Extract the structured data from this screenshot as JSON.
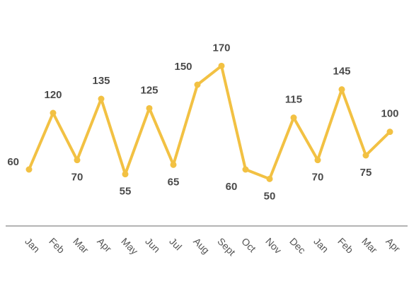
{
  "chart_data": {
    "type": "line",
    "categories": [
      "Jan",
      "Feb",
      "Mar",
      "Apr",
      "May",
      "Jun",
      "Jul",
      "Aug",
      "Sept",
      "Oct",
      "Nov",
      "Dec",
      "Jan",
      "Feb",
      "Mar",
      "Apr"
    ],
    "values": [
      60,
      120,
      70,
      135,
      55,
      125,
      65,
      150,
      170,
      60,
      50,
      115,
      70,
      145,
      75,
      100
    ],
    "color": "#f2c143",
    "ylim": [
      0,
      240
    ]
  }
}
